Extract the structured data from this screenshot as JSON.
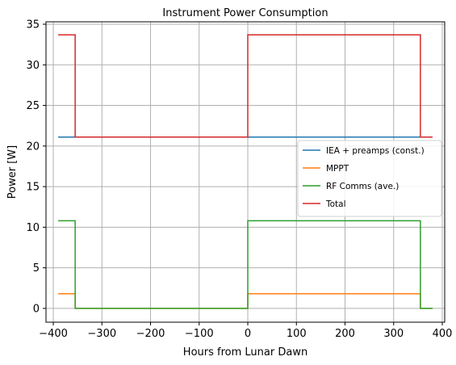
{
  "chart_data": {
    "type": "line",
    "title": "Instrument Power Consumption",
    "xlabel": "Hours from Lunar Dawn",
    "ylabel": "Power [W]",
    "xlim": [
      -415,
      405
    ],
    "ylim": [
      -1.7,
      35.3
    ],
    "xticks": [
      -400,
      -300,
      -200,
      -100,
      0,
      100,
      200,
      300,
      400
    ],
    "xtick_labels": [
      "−400",
      "−300",
      "−200",
      "−100",
      "0",
      "100",
      "200",
      "300",
      "400"
    ],
    "yticks": [
      0,
      5,
      10,
      15,
      20,
      25,
      30,
      35
    ],
    "ytick_labels": [
      "0",
      "5",
      "10",
      "15",
      "20",
      "25",
      "30",
      "35"
    ],
    "grid": true,
    "legend_position": "center-right",
    "series": [
      {
        "name": "IEA + preamps (const.)",
        "color": "#1f77b4",
        "x": [
          -390,
          380
        ],
        "y": [
          21.1,
          21.1
        ]
      },
      {
        "name": "MPPT",
        "color": "#ff7f0e",
        "x": [
          -390,
          -355,
          -355,
          0,
          0,
          355,
          355,
          380
        ],
        "y": [
          1.8,
          1.8,
          0,
          0,
          1.8,
          1.8,
          0,
          0
        ]
      },
      {
        "name": "RF Comms (ave.)",
        "color": "#2ca02c",
        "x": [
          -390,
          -355,
          -355,
          0,
          0,
          355,
          355,
          380
        ],
        "y": [
          10.8,
          10.8,
          0,
          0,
          10.8,
          10.8,
          0,
          0
        ]
      },
      {
        "name": "Total",
        "color": "#d62728",
        "x": [
          -390,
          -355,
          -355,
          0,
          0,
          355,
          355,
          380
        ],
        "y": [
          33.7,
          33.7,
          21.1,
          21.1,
          33.7,
          33.7,
          21.1,
          21.1
        ]
      }
    ]
  }
}
